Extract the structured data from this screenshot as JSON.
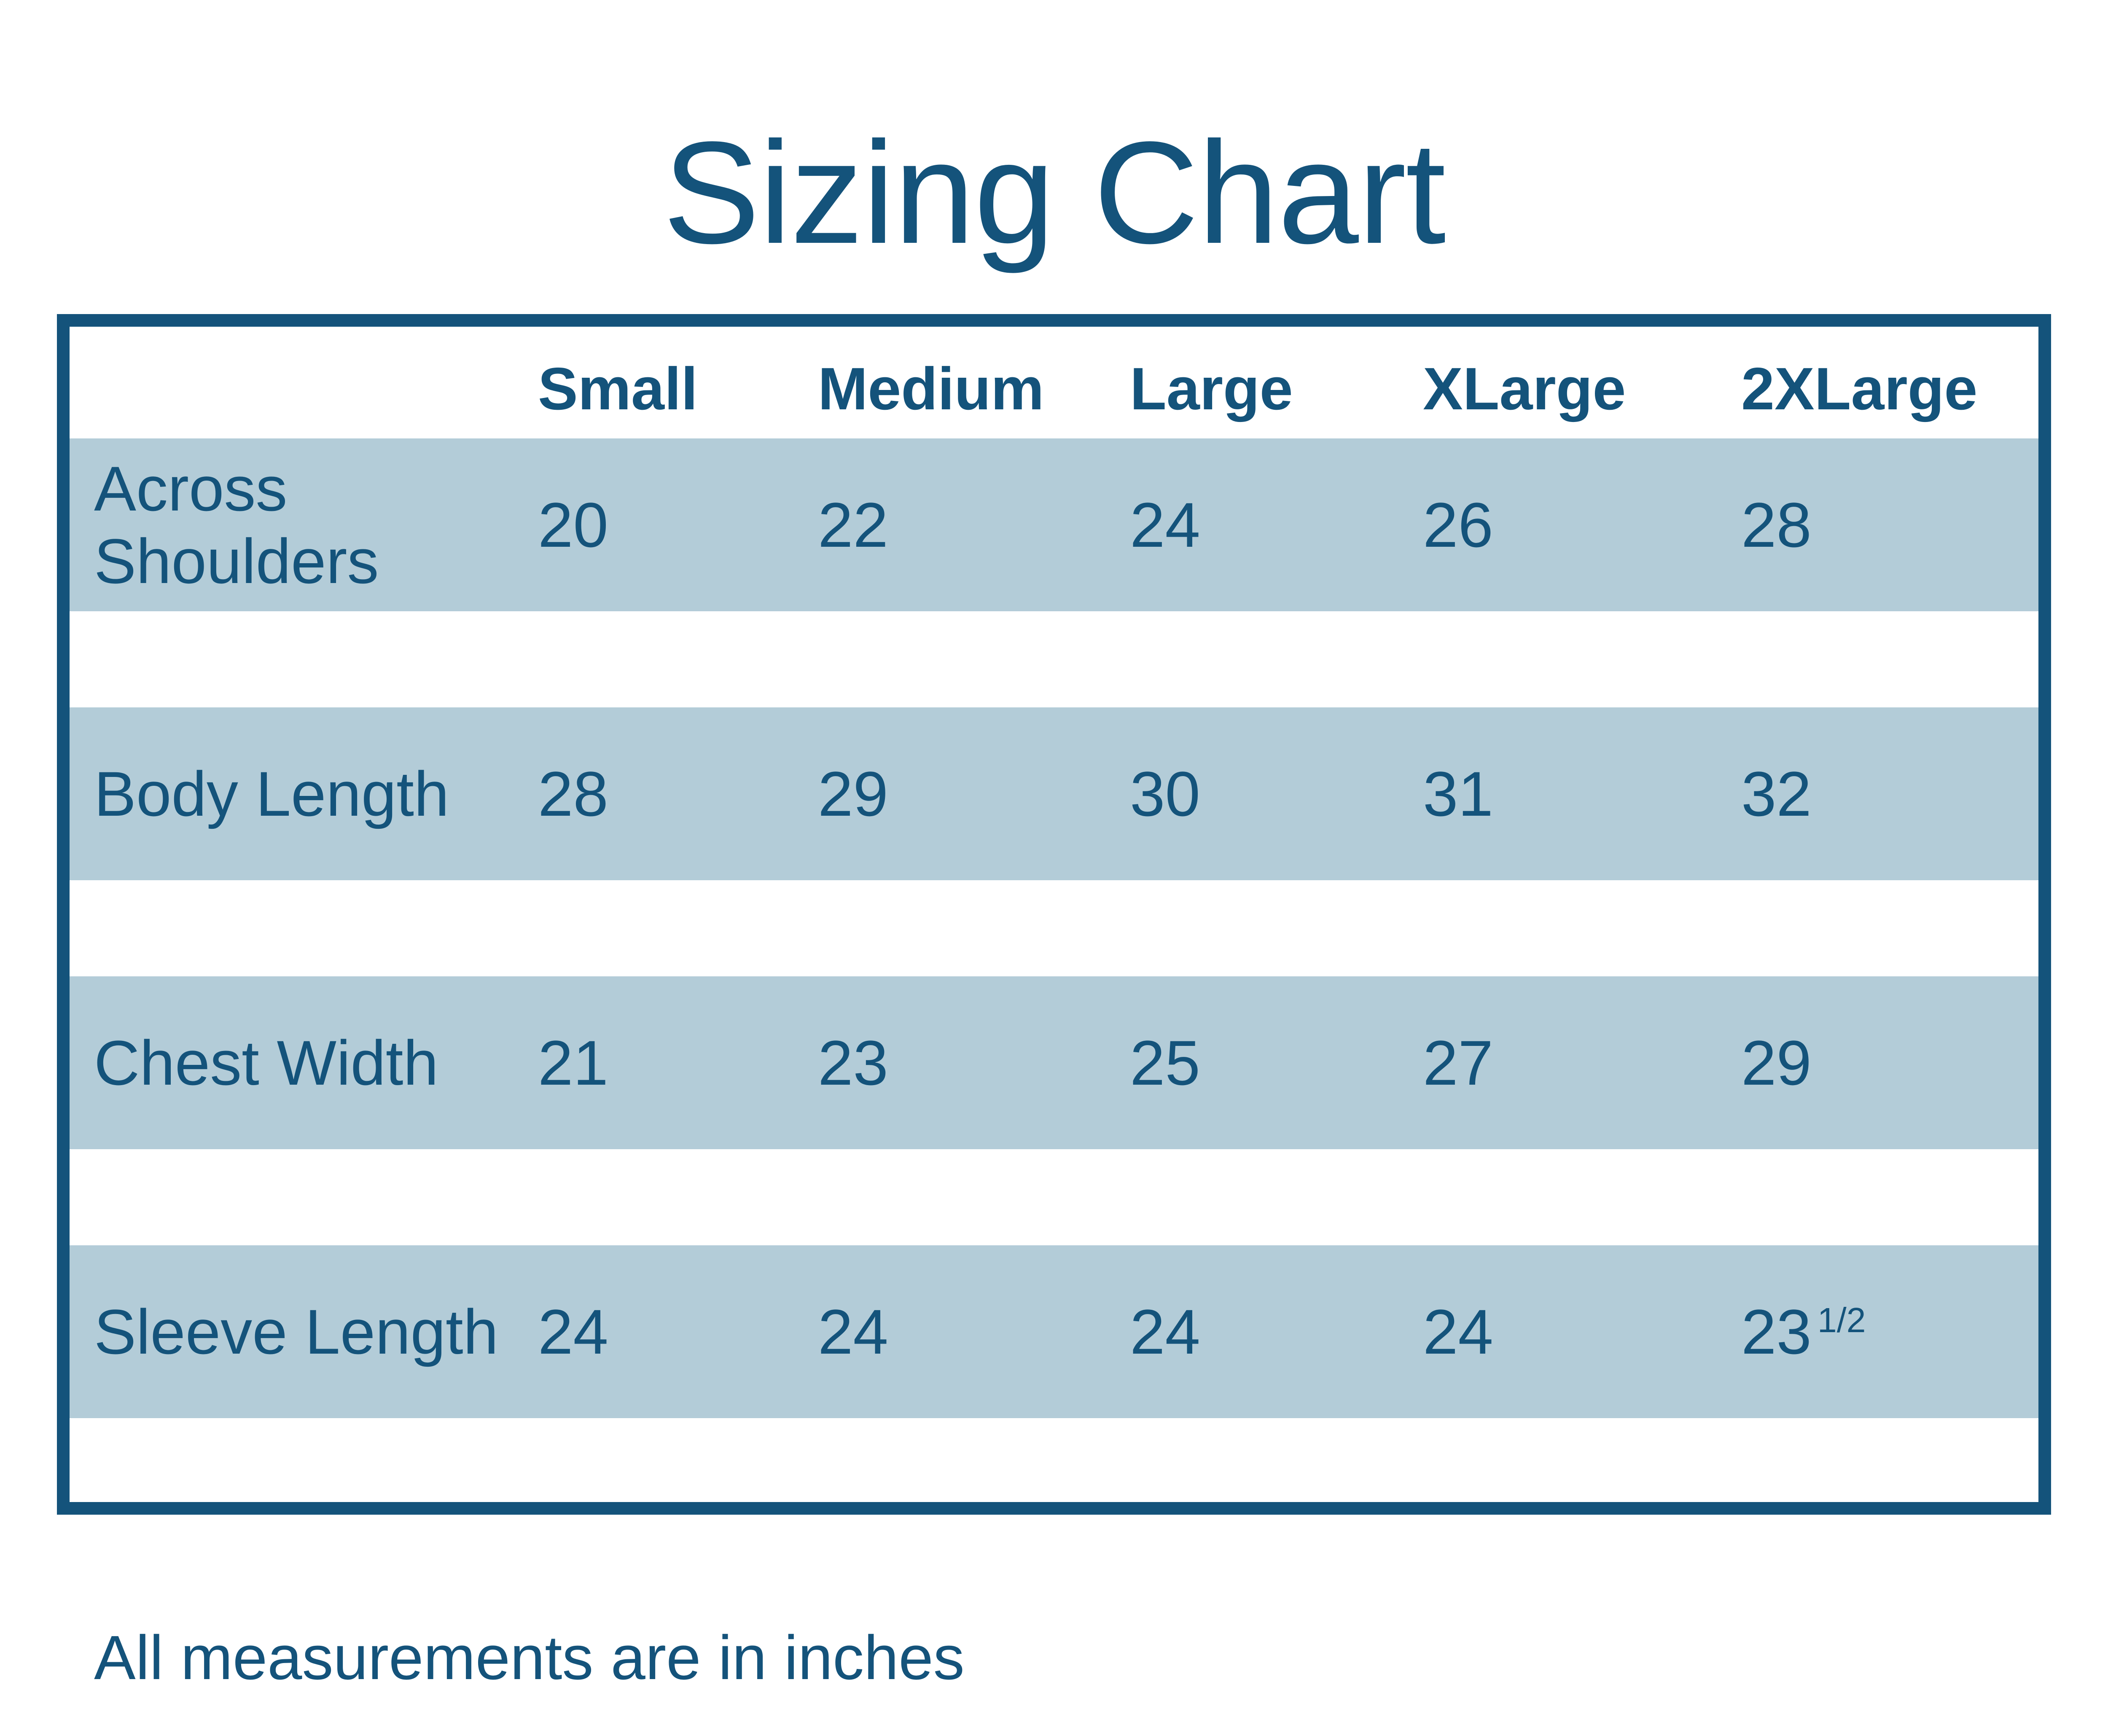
{
  "title": "Sizing Chart",
  "note": "All measurements are in inches",
  "colors": {
    "dark_blue": "#14537B",
    "light_blue_row": "#B3CCD8",
    "background": "#FFFFFF"
  },
  "fractions": {
    "sleeve_2xlarge": {
      "main": "23",
      "sup": "1/2"
    }
  },
  "chart_data": {
    "type": "table",
    "title": "Sizing Chart",
    "columns": [
      "",
      "Small",
      "Medium",
      "Large",
      "XLarge",
      "2XLarge"
    ],
    "rows": [
      [
        "Across Shoulders",
        20,
        22,
        24,
        26,
        28
      ],
      [
        "Body Length",
        28,
        29,
        30,
        31,
        32
      ],
      [
        "Chest Width",
        21,
        23,
        25,
        27,
        29
      ],
      [
        "Sleeve Length",
        24,
        24,
        24,
        24,
        "23 1/2"
      ]
    ],
    "note": "All measurements are in inches",
    "units": "inches",
    "layout": {
      "striped_rows": true,
      "stripe_color": "#B3CCD8",
      "border_color": "#14537B"
    }
  }
}
